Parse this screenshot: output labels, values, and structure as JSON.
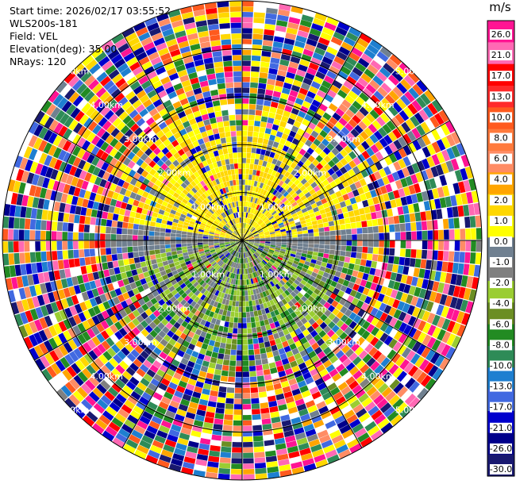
{
  "info": {
    "start_time": "Start time: 2026/02/17 03:55:52",
    "instrument": "WLS200s-181",
    "field": "Field: VEL",
    "elevation": "Elevation(deg): 35.00",
    "nrays": "NRays: 120"
  },
  "chart_data": {
    "type": "heatmap",
    "projection": "polar-ppi",
    "field": "VEL",
    "units": "m/s",
    "nrays": 120,
    "elevation_deg": 35.0,
    "range_rings_km": [
      1.0,
      2.0,
      3.0,
      4.0,
      5.0
    ],
    "range_ring_labels": [
      "1.00km",
      "2.00km",
      "3.00km",
      "4.00km",
      "5.00km"
    ],
    "max_range_km": 5.0,
    "colorbar": {
      "unit": "m/s",
      "ticks": [
        "26.0",
        "21.0",
        "17.0",
        "13.0",
        "10.0",
        "8.0",
        "6.0",
        "4.0",
        "2.0",
        "1.0",
        "0.0",
        "-1.0",
        "-2.0",
        "-4.0",
        "-6.0",
        "-8.0",
        "-10.0",
        "-13.0",
        "-17.0",
        "-21.0",
        "-26.0",
        "-30.0"
      ],
      "colors": [
        "#ff1493",
        "#ff69b4",
        "#ff0000",
        "#ff2a2a",
        "#ff5a1e",
        "#ff7a3c",
        "#ff8c64",
        "#ffa500",
        "#ffd700",
        "#ffff00",
        "#708090",
        "#808080",
        "#9acd32",
        "#6b8e23",
        "#228b22",
        "#2e8b57",
        "#1e7fd0",
        "#4169e1",
        "#0000cd",
        "#00008b",
        "#191970",
        "#191970"
      ]
    }
  }
}
